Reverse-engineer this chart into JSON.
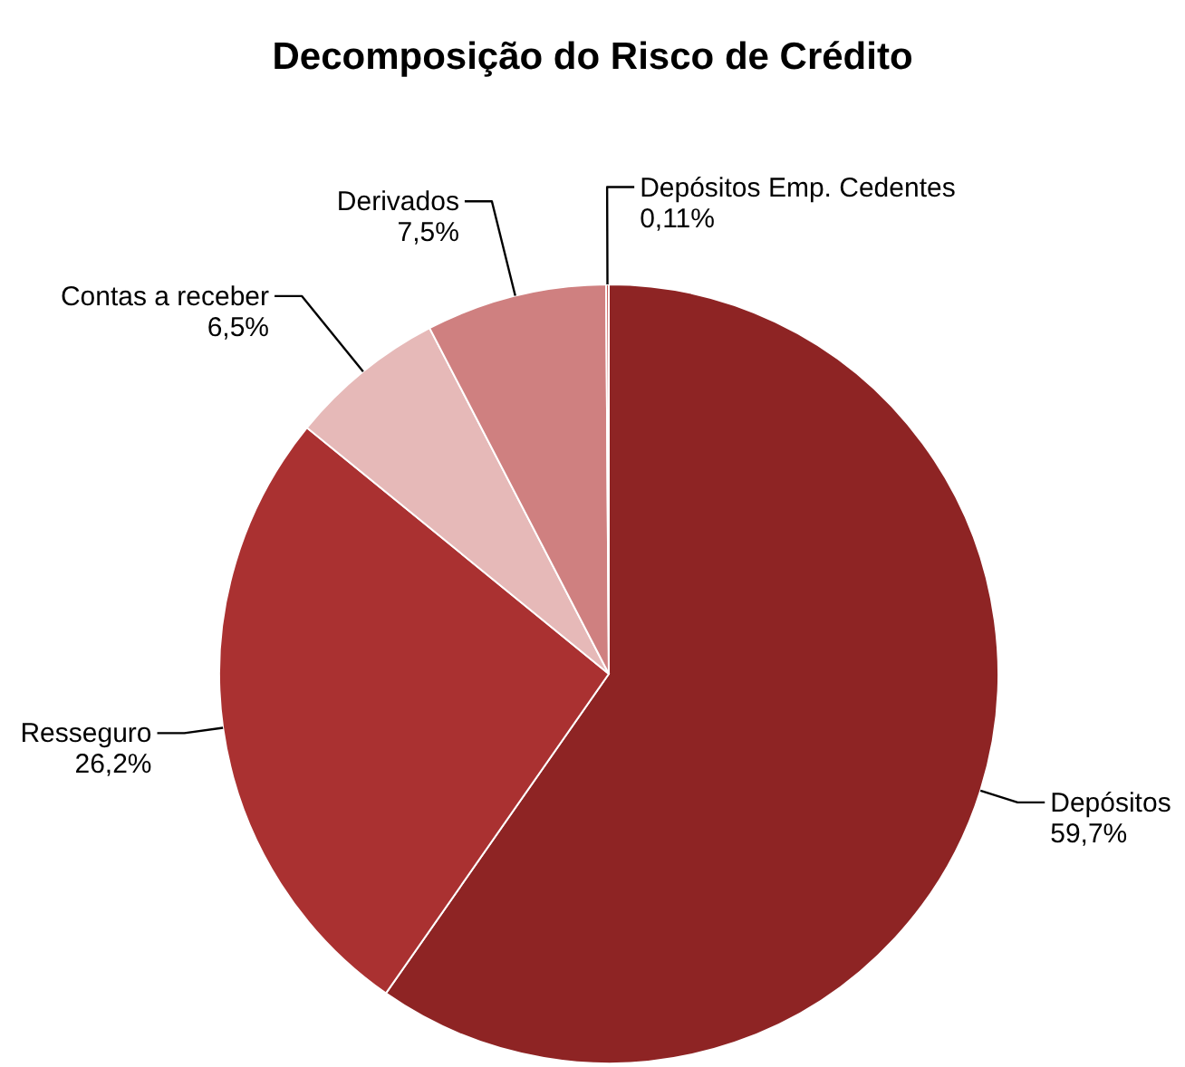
{
  "chart_data": {
    "type": "pie",
    "title": "Decomposição do Risco de Crédito",
    "categories": [
      "Depósitos",
      "Resseguro",
      "Contas a receber",
      "Derivados",
      "Depósitos Emp. Cedentes"
    ],
    "values": [
      59.7,
      26.2,
      6.5,
      7.5,
      0.11
    ],
    "value_labels": [
      "59,7%",
      "26,2%",
      "6,5%",
      "7,5%",
      "0,11%"
    ],
    "colors": [
      "#8e2424",
      "#aa3131",
      "#e6b9b8",
      "#cf8080",
      "#c0504d"
    ]
  }
}
